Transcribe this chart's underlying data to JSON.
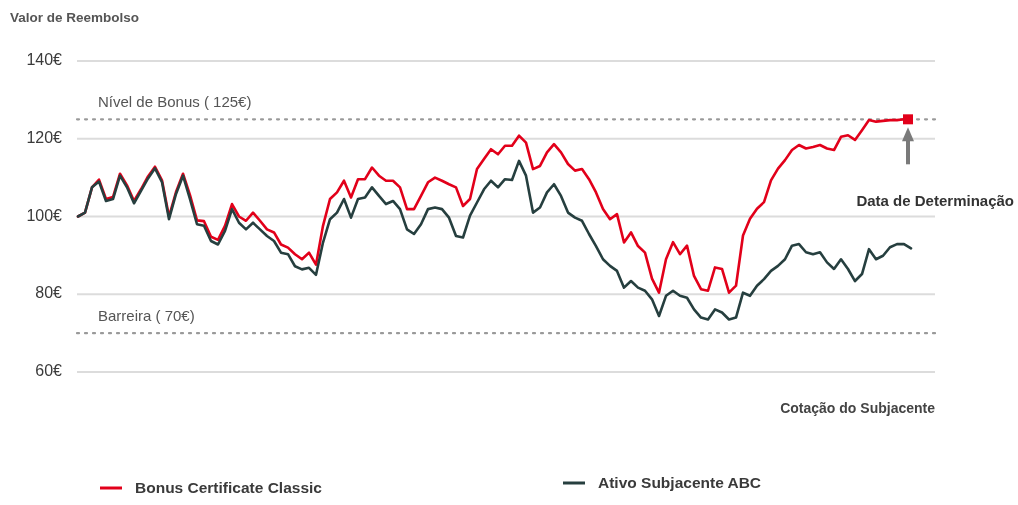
{
  "chart_data": {
    "type": "line",
    "ylabel": "Valor de Reembolso",
    "xlabel": "Cotação do Subjacente",
    "annotations": [
      "Data de Determinação"
    ],
    "categories": [
      null,
      null,
      null,
      null,
      null,
      null,
      null,
      null,
      null,
      null,
      null,
      null,
      null,
      null,
      null,
      null,
      null,
      null,
      null,
      null,
      null,
      null,
      null,
      null,
      null,
      null,
      null,
      null,
      null,
      null,
      null,
      null,
      null,
      null,
      null,
      null,
      null,
      null,
      null,
      null,
      null,
      null,
      null,
      null,
      null,
      null,
      null,
      null,
      null,
      null,
      null,
      null,
      null,
      null,
      null,
      null,
      null,
      null,
      null,
      null,
      null,
      null,
      null,
      null,
      null,
      null,
      null,
      null,
      null,
      null,
      null,
      null,
      null,
      null,
      null,
      null,
      null,
      null,
      null,
      null,
      null,
      null,
      null,
      null,
      null,
      null,
      null,
      null,
      null,
      null,
      null,
      null,
      null,
      null,
      null,
      null,
      null,
      null,
      null,
      null,
      null,
      null,
      null,
      null,
      null,
      null,
      null,
      null,
      null,
      null,
      null,
      null,
      null,
      null,
      null,
      null,
      null,
      null,
      null,
      null
    ],
    "series": [
      {
        "name": "Bonus Certificate Classic",
        "color": "#e2001a",
        "values": [
          100,
          101,
          107.5,
          109.5,
          104.5,
          105,
          111,
          108,
          104,
          107,
          110.3,
          112.8,
          109.3,
          100,
          106.3,
          111,
          105.5,
          99,
          98.8,
          94.8,
          94,
          97.6,
          103.2,
          100,
          98.9,
          101,
          98.9,
          96.7,
          95.9,
          92.8,
          92,
          90.3,
          89,
          90.7,
          87.6,
          97.6,
          104.5,
          106.2,
          109.2,
          104.9,
          109.6,
          109.6,
          112.6,
          110.5,
          109.2,
          109.2,
          107.5,
          101.9,
          101.9,
          105.3,
          108.8,
          110,
          109.2,
          108.3,
          107.5,
          102.7,
          104.5,
          112.2,
          114.8,
          117.3,
          116,
          118.2,
          118.2,
          120.8,
          119,
          112.2,
          113,
          116.5,
          118.6,
          116.5,
          113.5,
          111.8,
          112.2,
          109.6,
          106.2,
          101.9,
          99.3,
          100.6,
          93.3,
          95.9,
          92.4,
          90.7,
          84,
          80.4,
          89,
          93.4,
          90.3,
          92.5,
          84.7,
          81.3,
          80.9,
          86.9,
          86.5,
          80.4,
          82.2,
          95.1,
          99.4,
          102,
          103.7,
          109.3,
          112.3,
          114.5,
          117.1,
          118.4,
          117.5,
          117.9,
          118.4,
          117.5,
          117.1,
          120.5,
          120.9,
          119.7,
          122.2,
          124.8,
          124.4,
          124.6,
          124.8,
          124.8,
          125,
          125
        ]
      },
      {
        "name": "Ativo Subjacente ABC",
        "color": "#263f3f",
        "values": [
          100,
          101,
          107.5,
          109,
          104,
          104.5,
          110.5,
          107.5,
          103.4,
          106.6,
          109.8,
          112.4,
          108.8,
          99.3,
          105.8,
          110.5,
          104.5,
          98,
          97.6,
          93.7,
          92.8,
          96.3,
          101.9,
          98.4,
          96.7,
          98.4,
          96.7,
          95,
          93.7,
          90.7,
          90.3,
          87.2,
          86.4,
          86.8,
          85,
          93.3,
          99.3,
          101,
          104.5,
          99.7,
          104.5,
          104.9,
          107.5,
          105.3,
          103.2,
          104,
          101.9,
          96.7,
          95.5,
          98,
          101.9,
          102.3,
          101.9,
          99.7,
          95,
          94.6,
          100.2,
          103.6,
          107,
          109.2,
          107.5,
          109.6,
          109.4,
          114.3,
          110.5,
          101,
          102.3,
          106.2,
          108.3,
          105.3,
          101,
          99.7,
          98.9,
          95.5,
          92.4,
          89,
          87.3,
          86,
          81.7,
          83.4,
          81.7,
          80.9,
          78.7,
          74.4,
          79.6,
          80.9,
          79.6,
          79.1,
          76.1,
          74,
          73.5,
          76.1,
          75.3,
          73.5,
          74,
          80.4,
          79.6,
          82.2,
          83.9,
          86,
          87.3,
          89,
          92.5,
          92.9,
          90.8,
          90.3,
          90.8,
          88.2,
          86.5,
          89,
          86.5,
          83.4,
          85.2,
          91.6,
          89,
          89.9,
          92.1,
          92.9,
          92.9,
          91.8
        ]
      }
    ],
    "ylim": [
      60,
      140
    ],
    "yticks": [
      {
        "value": 60,
        "label": "60€"
      },
      {
        "value": 80,
        "label": "80€"
      },
      {
        "value": 100,
        "label": "100€"
      },
      {
        "value": 120,
        "label": "120€"
      },
      {
        "value": 140,
        "label": "140€"
      }
    ],
    "grid": "y",
    "legend": "bottom",
    "ref_lines": [
      {
        "axis": "y",
        "value": 125,
        "label": "Nível de Bonus ( 125€)",
        "color": "#9a9a9a",
        "line_style": "dotted"
      },
      {
        "axis": "y",
        "value": 70,
        "label": "Barreira ( 70€)",
        "color": "#9a9a9a",
        "line_style": "dotted"
      }
    ]
  }
}
